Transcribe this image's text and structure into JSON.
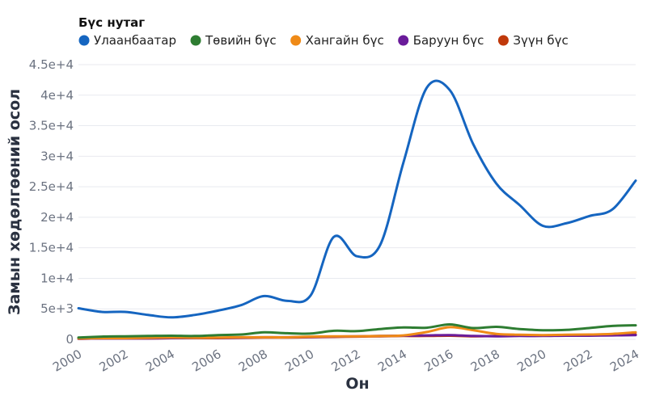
{
  "chart_data": {
    "type": "line",
    "title": "",
    "xlabel": "Он",
    "ylabel": "Замын хөдөлгөөний осол",
    "legend_title": "Бүс нутаг",
    "legend_position": "top-left",
    "grid": true,
    "xlim": [
      2000,
      2024
    ],
    "ylim": [
      0,
      45000
    ],
    "x_ticks": [
      "2000",
      "2002",
      "2004",
      "2006",
      "2008",
      "2010",
      "2012",
      "2014",
      "2016",
      "2018",
      "2020",
      "2022",
      "2024"
    ],
    "y_ticks": [
      "0",
      "5e+3",
      "1e+4",
      "1.5e+4",
      "2e+4",
      "2.5e+4",
      "3e+4",
      "3.5e+4",
      "4e+4",
      "4.5e+4"
    ],
    "x": [
      2000,
      2001,
      2002,
      2003,
      2004,
      2005,
      2006,
      2007,
      2008,
      2009,
      2010,
      2011,
      2012,
      2013,
      2014,
      2015,
      2016,
      2017,
      2018,
      2019,
      2020,
      2021,
      2022,
      2023,
      2024
    ],
    "series": [
      {
        "name": "Улаанбаатар",
        "color": "#1565c0",
        "values": [
          5100,
          4500,
          4500,
          4000,
          3600,
          4000,
          4700,
          5600,
          7100,
          6300,
          7200,
          16800,
          13600,
          15500,
          29000,
          41200,
          40800,
          32000,
          25500,
          22000,
          18600,
          19000,
          20200,
          21300,
          26000
        ]
      },
      {
        "name": "Төвийн бүс",
        "color": "#2e7d32",
        "values": [
          300,
          450,
          500,
          550,
          600,
          550,
          700,
          800,
          1150,
          1000,
          950,
          1400,
          1350,
          1700,
          1950,
          1900,
          2450,
          1850,
          2050,
          1700,
          1500,
          1550,
          1850,
          2200,
          2300
        ]
      },
      {
        "name": "Хангайн бүс",
        "color": "#ef8a17",
        "values": [
          150,
          200,
          200,
          250,
          300,
          250,
          300,
          350,
          350,
          350,
          450,
          500,
          500,
          550,
          650,
          1200,
          2000,
          1500,
          900,
          750,
          700,
          750,
          800,
          900,
          1150
        ]
      },
      {
        "name": "Баруун бүс",
        "color": "#6a1b9a",
        "values": [
          100,
          150,
          150,
          150,
          200,
          200,
          250,
          300,
          350,
          350,
          400,
          450,
          500,
          550,
          600,
          650,
          700,
          550,
          500,
          550,
          550,
          600,
          600,
          650,
          700
        ]
      },
      {
        "name": "Зүүн бүс",
        "color": "#c0390b",
        "values": [
          100,
          150,
          150,
          150,
          200,
          200,
          200,
          250,
          300,
          300,
          350,
          400,
          450,
          500,
          550,
          550,
          600,
          500,
          550,
          600,
          600,
          650,
          700,
          700,
          800
        ]
      }
    ]
  }
}
